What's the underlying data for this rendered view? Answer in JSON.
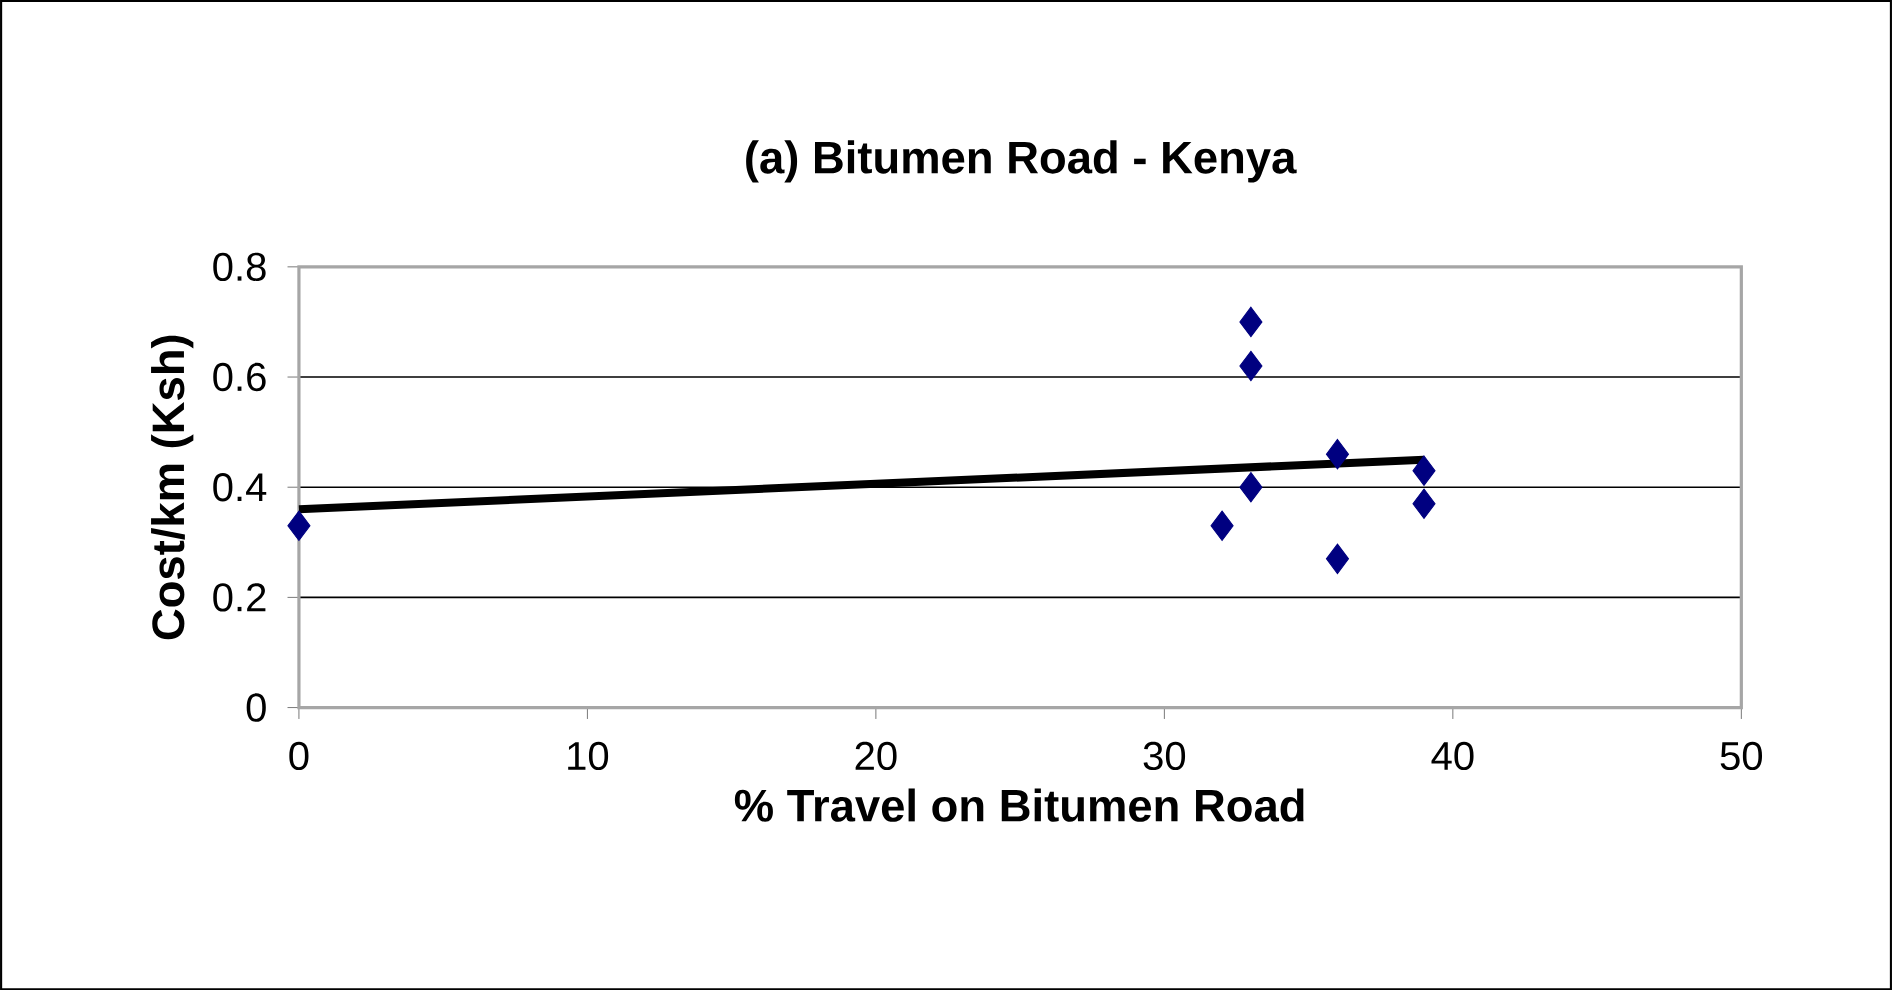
{
  "chart_data": {
    "type": "scatter",
    "title": "(a) Bitumen Road - Kenya",
    "xlabel": "% Travel on Bitumen Road",
    "ylabel": "Cost/km (Ksh)",
    "xlim": [
      0,
      50
    ],
    "xticks": [
      0,
      10,
      20,
      30,
      40,
      50
    ],
    "ylim": [
      0,
      0.8
    ],
    "yticks": [
      0,
      0.2,
      0.4,
      0.6,
      0.8
    ],
    "grid": "y",
    "series": [
      {
        "marker": "diamond",
        "color": "#000080",
        "x": [
          0,
          32,
          33,
          33,
          33,
          36,
          36,
          39,
          39
        ],
        "values": [
          0.33,
          0.33,
          0.7,
          0.62,
          0.4,
          0.46,
          0.27,
          0.43,
          0.37
        ]
      },
      {
        "type": "line",
        "marker": "none",
        "color": "#000000",
        "x": [
          0,
          39
        ],
        "values": [
          0.36,
          0.45
        ]
      }
    ]
  }
}
